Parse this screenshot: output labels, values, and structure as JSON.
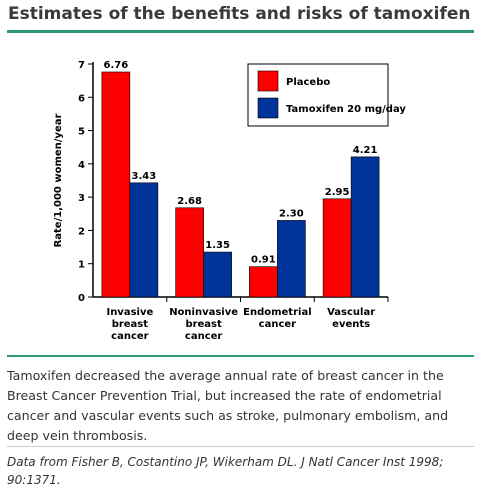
{
  "title": "Estimates of the benefits and risks of tamoxifen",
  "caption": "Tamoxifen decreased the average annual rate of breast cancer in the Breast Cancer Prevention Trial, but increased the rate of endometrial cancer and vascular events such as stroke, pulmonary embolism, and deep vein thrombosis.",
  "source": "Data from Fisher B, Costantino JP, Wikerham DL. J Natl Cancer Inst 1998; 90:1371.",
  "chart_data": {
    "type": "bar",
    "title": "",
    "xlabel": "",
    "ylabel": "Rate/1,000 women/year",
    "ylim": [
      0,
      7
    ],
    "yticks": [
      0,
      1,
      2,
      3,
      4,
      5,
      6,
      7
    ],
    "categories": [
      [
        "Invasive",
        "breast",
        "cancer"
      ],
      [
        "Noninvasive",
        "breast",
        "cancer"
      ],
      [
        "Endometrial",
        "cancer"
      ],
      [
        "Vascular",
        "events"
      ]
    ],
    "series": [
      {
        "name": "Placebo",
        "color": "#ff0000",
        "values": [
          6.76,
          2.68,
          0.91,
          2.95
        ],
        "labels": [
          "6.76",
          "2.68",
          "0.91",
          "2.95"
        ]
      },
      {
        "name": "Tamoxifen 20 mg/day",
        "color": "#003399",
        "values": [
          3.43,
          1.35,
          2.3,
          4.21
        ],
        "labels": [
          "3.43",
          "1.35",
          "2.30",
          "4.21"
        ]
      }
    ],
    "legend_position": "top-right",
    "grid": false
  }
}
